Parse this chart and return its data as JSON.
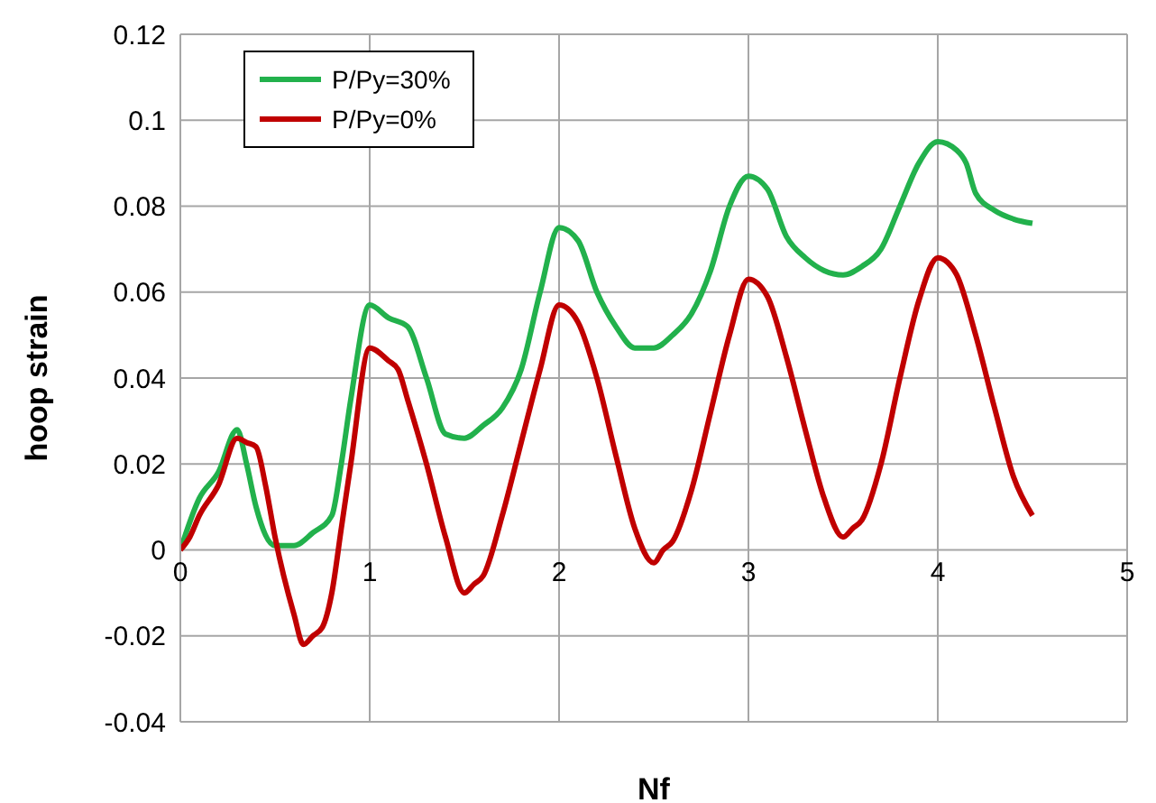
{
  "chart_data": {
    "type": "line",
    "xlabel": "Nf",
    "ylabel": "hoop strain",
    "xlim": [
      0,
      5
    ],
    "xticks": [
      0,
      1,
      2,
      3,
      4,
      5
    ],
    "ylim": [
      -0.04,
      0.12
    ],
    "yticks": [
      -0.04,
      -0.02,
      0,
      0.02,
      0.04,
      0.06,
      0.08,
      0.1,
      0.12
    ],
    "grid": true,
    "legend": "top left",
    "marker": "none",
    "line_style": "solid",
    "series": [
      {
        "name": "P/Py=30%",
        "color": "#22b14c",
        "x": [
          0,
          0.1,
          0.2,
          0.3,
          0.35,
          0.4,
          0.5,
          0.6,
          0.7,
          0.8,
          0.85,
          0.9,
          1.0,
          1.1,
          1.2,
          1.3,
          1.4,
          1.5,
          1.6,
          1.7,
          1.8,
          1.9,
          2.0,
          2.1,
          2.2,
          2.3,
          2.4,
          2.5,
          2.6,
          2.7,
          2.8,
          2.9,
          3.0,
          3.1,
          3.2,
          3.3,
          3.4,
          3.5,
          3.6,
          3.7,
          3.8,
          3.9,
          4.0,
          4.1,
          4.15,
          4.2,
          4.3,
          4.4,
          4.5
        ],
        "values": [
          0,
          0.012,
          0.018,
          0.028,
          0.02,
          0.01,
          0.001,
          0.001,
          0.004,
          0.008,
          0.02,
          0.035,
          0.057,
          0.054,
          0.052,
          0.04,
          0.027,
          0.026,
          0.029,
          0.033,
          0.042,
          0.06,
          0.075,
          0.072,
          0.06,
          0.052,
          0.047,
          0.047,
          0.05,
          0.055,
          0.065,
          0.08,
          0.087,
          0.084,
          0.073,
          0.068,
          0.065,
          0.064,
          0.066,
          0.07,
          0.08,
          0.09,
          0.095,
          0.093,
          0.09,
          0.083,
          0.079,
          0.077,
          0.076
        ]
      },
      {
        "name": "P/Py=0%",
        "color": "#c00000",
        "x": [
          0,
          0.05,
          0.1,
          0.2,
          0.3,
          0.35,
          0.4,
          0.45,
          0.5,
          0.6,
          0.65,
          0.7,
          0.75,
          0.8,
          0.85,
          0.9,
          1.0,
          1.1,
          1.15,
          1.2,
          1.3,
          1.4,
          1.5,
          1.55,
          1.6,
          1.7,
          1.8,
          1.9,
          2.0,
          2.1,
          2.2,
          2.3,
          2.4,
          2.5,
          2.55,
          2.6,
          2.7,
          2.8,
          2.9,
          3.0,
          3.1,
          3.2,
          3.3,
          3.4,
          3.5,
          3.55,
          3.6,
          3.7,
          3.8,
          3.9,
          4.0,
          4.05,
          4.1,
          4.2,
          4.3,
          4.4,
          4.5
        ],
        "values": [
          0,
          0.003,
          0.008,
          0.015,
          0.026,
          0.025,
          0.024,
          0.015,
          0.003,
          -0.015,
          -0.022,
          -0.02,
          -0.018,
          -0.01,
          0.005,
          0.02,
          0.047,
          0.044,
          0.042,
          0.035,
          0.02,
          0.003,
          -0.01,
          -0.008,
          -0.006,
          0.008,
          0.025,
          0.042,
          0.057,
          0.053,
          0.04,
          0.022,
          0.005,
          -0.003,
          0,
          0.002,
          0.014,
          0.032,
          0.05,
          0.063,
          0.059,
          0.045,
          0.028,
          0.012,
          0.003,
          0.005,
          0.007,
          0.02,
          0.04,
          0.058,
          0.068,
          0.067,
          0.064,
          0.05,
          0.033,
          0.017,
          0.008
        ]
      }
    ]
  }
}
